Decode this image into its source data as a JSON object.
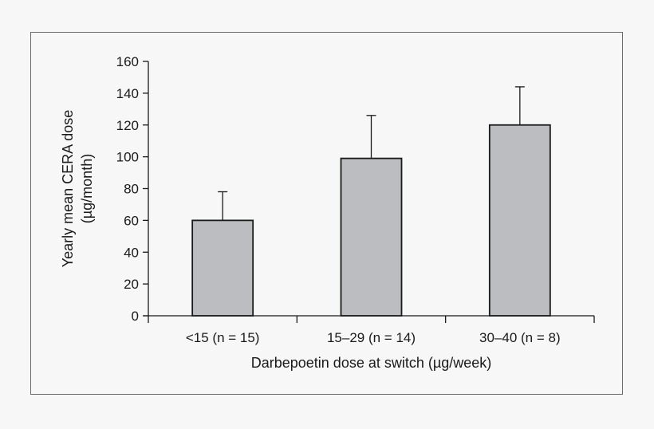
{
  "chart_data": {
    "type": "bar",
    "title": "",
    "xlabel": "Darbepoetin dose at switch (µg/week)",
    "ylabel_lines": [
      "Yearly mean CERA dose",
      "(µg/month)"
    ],
    "categories": [
      "<15 (n = 15)",
      "15–29 (n = 14)",
      "30–40 (n = 8)"
    ],
    "values": [
      60,
      99,
      120
    ],
    "error_upper": [
      78,
      126,
      144
    ],
    "ylim": [
      0,
      160
    ],
    "yticks": [
      "0",
      "20",
      "40",
      "60",
      "80",
      "100",
      "120",
      "140",
      "160"
    ],
    "grid": false,
    "legend": "none",
    "bar_color": "#bcbdc0",
    "bar_edge_color": "#1a1a1a"
  }
}
